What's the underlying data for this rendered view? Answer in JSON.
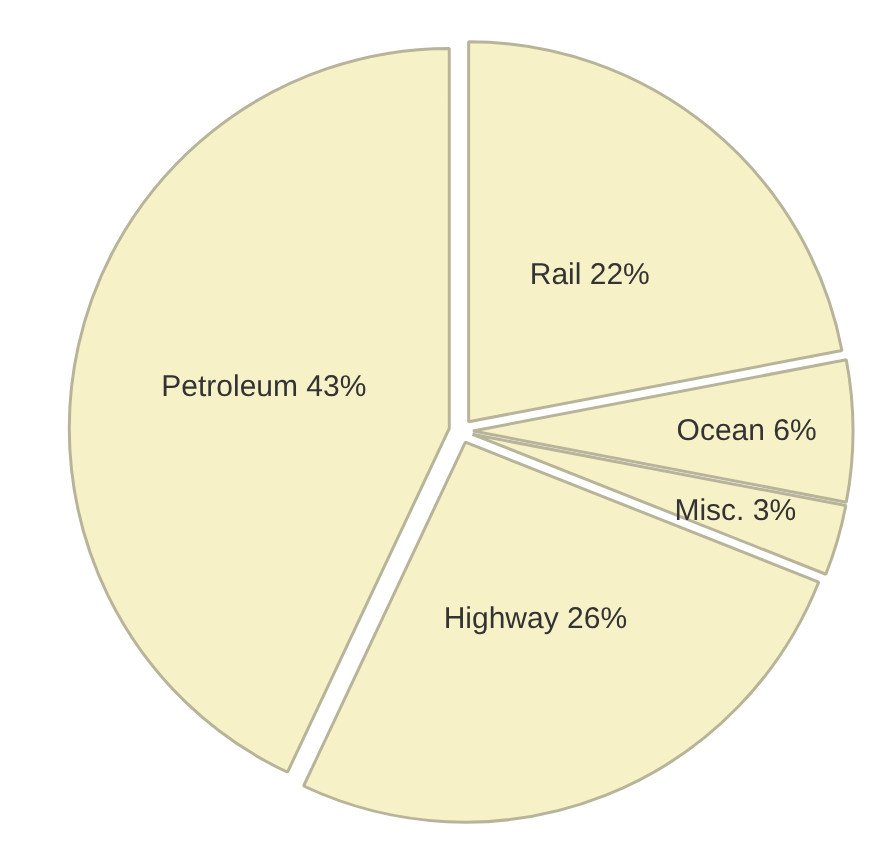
{
  "chart_data": {
    "type": "pie",
    "categories": [
      "Rail",
      "Ocean",
      "Misc.",
      "Highway",
      "Petroleum"
    ],
    "values": [
      22,
      6,
      3,
      26,
      43
    ],
    "value_labels": [
      "22%",
      "6%",
      "3%",
      "26%",
      "43%"
    ],
    "colors": [
      "#f7f1c8",
      "#f7f1c8",
      "#f7f1c8",
      "#f7f1c8",
      "#f7f1c8"
    ]
  }
}
